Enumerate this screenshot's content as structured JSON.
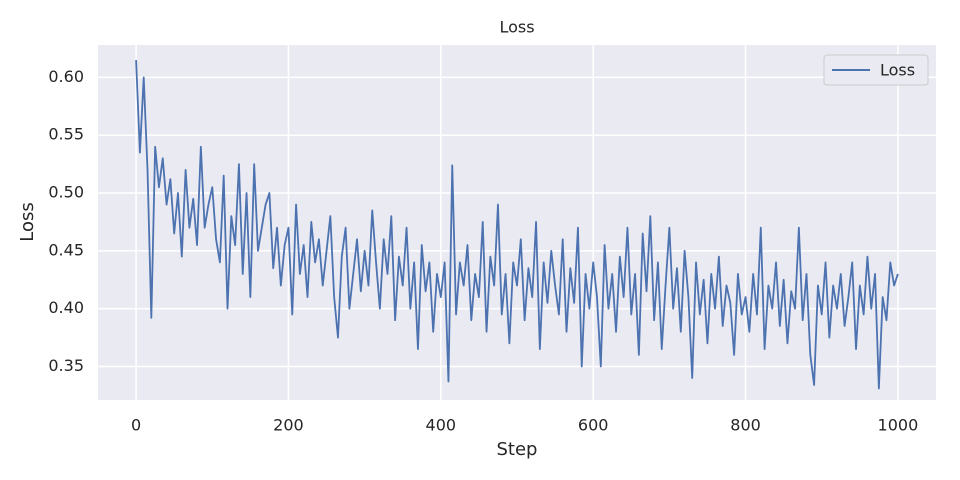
{
  "chart_data": {
    "type": "line",
    "title": "Loss",
    "xlabel": "Step",
    "ylabel": "Loss",
    "x": [
      0,
      5,
      10,
      15,
      20,
      25,
      30,
      35,
      40,
      45,
      50,
      55,
      60,
      65,
      70,
      75,
      80,
      85,
      90,
      95,
      100,
      105,
      110,
      115,
      120,
      125,
      130,
      135,
      140,
      145,
      150,
      155,
      160,
      165,
      170,
      175,
      180,
      185,
      190,
      195,
      200,
      205,
      210,
      215,
      220,
      225,
      230,
      235,
      240,
      245,
      250,
      255,
      260,
      265,
      270,
      275,
      280,
      285,
      290,
      295,
      300,
      305,
      310,
      315,
      320,
      325,
      330,
      335,
      340,
      345,
      350,
      355,
      360,
      365,
      370,
      375,
      380,
      385,
      390,
      395,
      400,
      405,
      410,
      415,
      420,
      425,
      430,
      435,
      440,
      445,
      450,
      455,
      460,
      465,
      470,
      475,
      480,
      485,
      490,
      495,
      500,
      505,
      510,
      515,
      520,
      525,
      530,
      535,
      540,
      545,
      550,
      555,
      560,
      565,
      570,
      575,
      580,
      585,
      590,
      595,
      600,
      605,
      610,
      615,
      620,
      625,
      630,
      635,
      640,
      645,
      650,
      655,
      660,
      665,
      670,
      675,
      680,
      685,
      690,
      695,
      700,
      705,
      710,
      715,
      720,
      725,
      730,
      735,
      740,
      745,
      750,
      755,
      760,
      765,
      770,
      775,
      780,
      785,
      790,
      795,
      800,
      805,
      810,
      815,
      820,
      825,
      830,
      835,
      840,
      845,
      850,
      855,
      860,
      865,
      870,
      875,
      880,
      885,
      890,
      895,
      900,
      905,
      910,
      915,
      920,
      925,
      930,
      935,
      940,
      945,
      950,
      955,
      960,
      965,
      970,
      975,
      980,
      985,
      990,
      995,
      1000
    ],
    "series": [
      {
        "name": "Loss",
        "color": "#4c72b0",
        "values": [
          0.615,
          0.535,
          0.6,
          0.52,
          0.392,
          0.54,
          0.505,
          0.53,
          0.49,
          0.512,
          0.465,
          0.5,
          0.445,
          0.52,
          0.47,
          0.495,
          0.455,
          0.54,
          0.47,
          0.49,
          0.505,
          0.46,
          0.44,
          0.515,
          0.4,
          0.48,
          0.455,
          0.525,
          0.43,
          0.5,
          0.41,
          0.525,
          0.45,
          0.47,
          0.49,
          0.5,
          0.435,
          0.47,
          0.42,
          0.455,
          0.47,
          0.395,
          0.49,
          0.43,
          0.455,
          0.41,
          0.475,
          0.44,
          0.46,
          0.42,
          0.45,
          0.48,
          0.41,
          0.375,
          0.445,
          0.47,
          0.4,
          0.43,
          0.46,
          0.415,
          0.45,
          0.42,
          0.485,
          0.44,
          0.4,
          0.46,
          0.43,
          0.48,
          0.39,
          0.445,
          0.42,
          0.47,
          0.4,
          0.44,
          0.365,
          0.455,
          0.415,
          0.44,
          0.38,
          0.43,
          0.41,
          0.44,
          0.337,
          0.524,
          0.395,
          0.44,
          0.42,
          0.455,
          0.39,
          0.43,
          0.41,
          0.475,
          0.38,
          0.445,
          0.42,
          0.49,
          0.395,
          0.43,
          0.37,
          0.44,
          0.42,
          0.46,
          0.39,
          0.435,
          0.41,
          0.475,
          0.365,
          0.44,
          0.405,
          0.45,
          0.42,
          0.395,
          0.46,
          0.38,
          0.435,
          0.405,
          0.47,
          0.35,
          0.43,
          0.4,
          0.44,
          0.41,
          0.35,
          0.455,
          0.4,
          0.43,
          0.38,
          0.445,
          0.41,
          0.47,
          0.395,
          0.43,
          0.36,
          0.465,
          0.415,
          0.48,
          0.39,
          0.44,
          0.365,
          0.42,
          0.47,
          0.4,
          0.435,
          0.38,
          0.45,
          0.41,
          0.34,
          0.44,
          0.395,
          0.425,
          0.37,
          0.43,
          0.4,
          0.445,
          0.385,
          0.42,
          0.405,
          0.36,
          0.43,
          0.395,
          0.41,
          0.38,
          0.43,
          0.395,
          0.47,
          0.365,
          0.42,
          0.4,
          0.44,
          0.385,
          0.425,
          0.37,
          0.415,
          0.4,
          0.47,
          0.39,
          0.43,
          0.36,
          0.334,
          0.42,
          0.395,
          0.44,
          0.375,
          0.42,
          0.4,
          0.43,
          0.385,
          0.41,
          0.44,
          0.365,
          0.42,
          0.395,
          0.445,
          0.4,
          0.43,
          0.331,
          0.41,
          0.39,
          0.44,
          0.42,
          0.43
        ]
      }
    ],
    "xlim": [
      -50,
      1050
    ],
    "xticks": [
      0,
      200,
      400,
      600,
      800,
      1000
    ],
    "ylim": [
      0.321,
      0.628
    ],
    "yticks": [
      0.35,
      {
        "value": 0.4,
        "label": "0.40"
      },
      0.45,
      {
        "value": 0.5,
        "label": "0.50"
      },
      0.55,
      {
        "value": 0.6,
        "label": "0.60"
      }
    ],
    "grid": true,
    "legend": "upper right"
  }
}
